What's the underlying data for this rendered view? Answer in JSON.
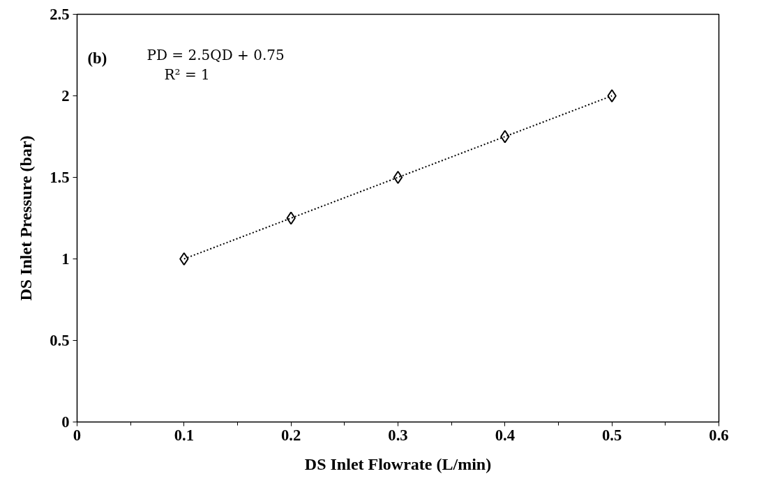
{
  "chart_data": {
    "type": "scatter",
    "xlabel": "DS Inlet Flowrate (L/min)",
    "ylabel": "DS Inlet Pressure (bar)",
    "annotations": [
      "(b)",
      "PD = 2.5QD + 0.75",
      "R² = 1"
    ],
    "x": [
      0.1,
      0.2,
      0.3,
      0.4,
      0.5
    ],
    "series": [
      {
        "color": "#000000",
        "marker": "diamond",
        "values": [
          1,
          1.25,
          1.5,
          1.75,
          2
        ]
      },
      {
        "type": "line",
        "color": "#000000",
        "line_style": "dotted",
        "marker": "none",
        "x": [
          0.1,
          0.5
        ],
        "values": [
          1,
          2
        ]
      }
    ],
    "xlim": [
      0,
      0.6
    ],
    "ylim": [
      0,
      2.5
    ],
    "xticks": [
      0,
      0.1,
      0.2,
      0.3,
      0.4,
      0.5,
      0.6
    ],
    "yticks": [
      0,
      0.5,
      1,
      1.5,
      2,
      2.5
    ],
    "grid": false
  }
}
